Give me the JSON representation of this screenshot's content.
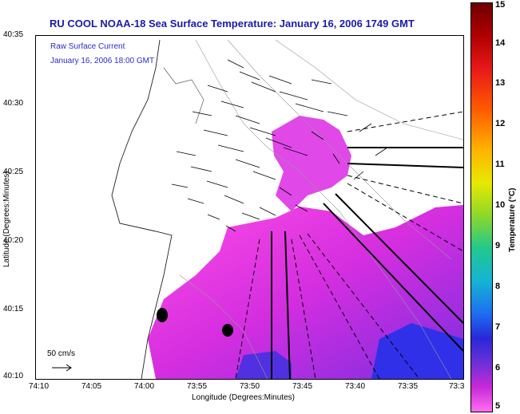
{
  "title": "RU COOL  NOAA-18 Sea Surface Temperature:  January 16, 2006 1749 GMT",
  "annotation": {
    "line1": "Raw Surface Current",
    "line2": "January 16, 2006 18:00 GMT"
  },
  "scale_label": "50 cm/s",
  "xlabel": "Longitude (Degrees:Minutes)",
  "ylabel": "Latitude (Degrees:Minutes)",
  "x_ticks": [
    "74:10",
    "74:05",
    "74:00",
    "73:55",
    "73:50",
    "73:45",
    "73:40",
    "73:35",
    "73:3"
  ],
  "y_ticks": [
    "40:35",
    "40:30",
    "40:25",
    "40:20",
    "40:15",
    "40:10"
  ],
  "colorbar": {
    "title": "Temperature (°C)",
    "ticks": [
      "15",
      "14",
      "13",
      "12",
      "11",
      "10",
      "9",
      "8",
      "7",
      "6",
      "5"
    ]
  },
  "colors": {
    "title": "#1a1aa8",
    "annotation": "#2a2ad0",
    "sst_warm": "#e040e8",
    "sst_cold": "#2020e0"
  }
}
